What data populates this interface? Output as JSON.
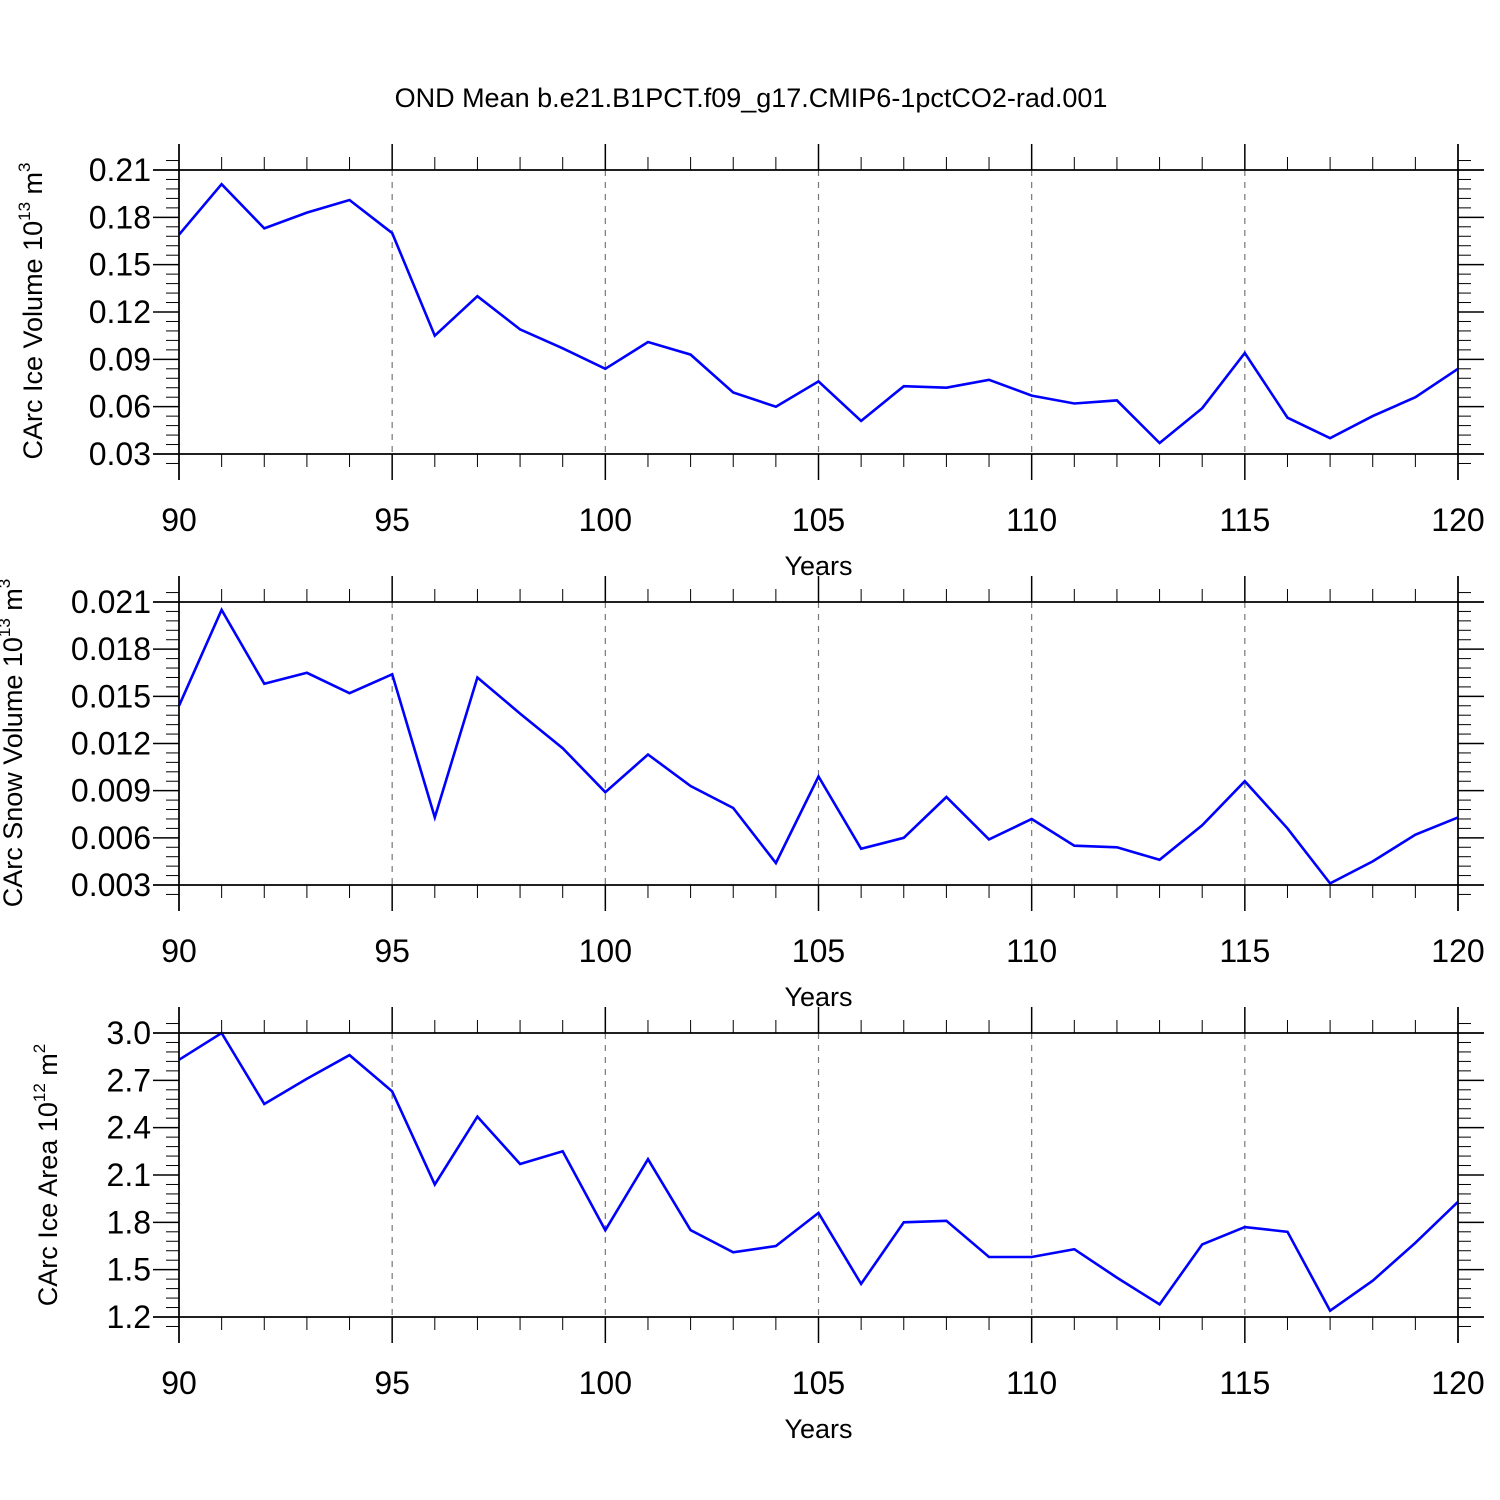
{
  "figure": {
    "title": "OND Mean b.e21.B1PCT.f09_g17.CMIP6-1pctCO2-rad.001"
  },
  "colors": {
    "series": "#0000ff",
    "axis": "#000000",
    "grid": "#777777"
  },
  "chart_data": [
    {
      "type": "line",
      "title": "",
      "xlabel": "Years",
      "ylabel": {
        "main": "CArc Ice Volume 10",
        "exp": "13",
        "unit": " m",
        "unit_exp": "3"
      },
      "xlim": [
        90,
        120
      ],
      "ylim": [
        0.03,
        0.21
      ],
      "xticks": [
        90,
        95,
        100,
        105,
        110,
        115,
        120
      ],
      "xtick_labels": [
        "90",
        "95",
        "100",
        "105",
        "110",
        "115",
        "120"
      ],
      "yticks": [
        0.03,
        0.06,
        0.09,
        0.12,
        0.15,
        0.18,
        0.21
      ],
      "ytick_labels": [
        "0.03",
        "0.06",
        "0.09",
        "0.12",
        "0.15",
        "0.18",
        "0.21"
      ],
      "grid": "vertical dashed at major x ticks",
      "x": [
        90,
        91,
        92,
        93,
        94,
        95,
        96,
        97,
        98,
        99,
        100,
        101,
        102,
        103,
        104,
        105,
        106,
        107,
        108,
        109,
        110,
        111,
        112,
        113,
        114,
        115,
        116,
        117,
        118,
        119,
        120
      ],
      "series": [
        {
          "values": [
            0.169,
            0.201,
            0.173,
            0.183,
            0.191,
            0.17,
            0.105,
            0.13,
            0.109,
            0.097,
            0.084,
            0.101,
            0.093,
            0.069,
            0.06,
            0.076,
            0.051,
            0.073,
            0.072,
            0.077,
            0.067,
            0.062,
            0.064,
            0.037,
            0.059,
            0.094,
            0.053,
            0.04,
            0.054,
            0.066,
            0.084
          ]
        }
      ]
    },
    {
      "type": "line",
      "title": "",
      "xlabel": "Years",
      "ylabel": {
        "main": "CArc Snow Volume 10",
        "exp": "13",
        "unit": " m",
        "unit_exp": "3"
      },
      "xlim": [
        90,
        120
      ],
      "ylim": [
        0.003,
        0.021
      ],
      "xticks": [
        90,
        95,
        100,
        105,
        110,
        115,
        120
      ],
      "xtick_labels": [
        "90",
        "95",
        "100",
        "105",
        "110",
        "115",
        "120"
      ],
      "yticks": [
        0.003,
        0.006,
        0.009,
        0.012,
        0.015,
        0.018,
        0.021
      ],
      "ytick_labels": [
        "0.003",
        "0.006",
        "0.009",
        "0.012",
        "0.015",
        "0.018",
        "0.021"
      ],
      "grid": "vertical dashed at major x ticks",
      "x": [
        90,
        91,
        92,
        93,
        94,
        95,
        96,
        97,
        98,
        99,
        100,
        101,
        102,
        103,
        104,
        105,
        106,
        107,
        108,
        109,
        110,
        111,
        112,
        113,
        114,
        115,
        116,
        117,
        118,
        119,
        120
      ],
      "series": [
        {
          "values": [
            0.0144,
            0.0205,
            0.0158,
            0.0165,
            0.0152,
            0.0164,
            0.0073,
            0.0162,
            0.0139,
            0.0117,
            0.0089,
            0.0113,
            0.0093,
            0.0079,
            0.0044,
            0.0099,
            0.0053,
            0.006,
            0.0086,
            0.0059,
            0.0072,
            0.0055,
            0.0054,
            0.0046,
            0.0068,
            0.0096,
            0.0066,
            0.0031,
            0.0045,
            0.0062,
            0.0073
          ]
        }
      ]
    },
    {
      "type": "line",
      "title": "",
      "xlabel": "Years",
      "ylabel": {
        "main": "CArc Ice Area 10",
        "exp": "12",
        "unit": " m",
        "unit_exp": "2"
      },
      "xlim": [
        90,
        120
      ],
      "ylim": [
        1.2,
        3.0
      ],
      "xticks": [
        90,
        95,
        100,
        105,
        110,
        115,
        120
      ],
      "xtick_labels": [
        "90",
        "95",
        "100",
        "105",
        "110",
        "115",
        "120"
      ],
      "yticks": [
        1.2,
        1.5,
        1.8,
        2.1,
        2.4,
        2.7,
        3.0
      ],
      "ytick_labels": [
        "1.2",
        "1.5",
        "1.8",
        "2.1",
        "2.4",
        "2.7",
        "3.0"
      ],
      "grid": "vertical dashed at major x ticks",
      "x": [
        90,
        91,
        92,
        93,
        94,
        95,
        96,
        97,
        98,
        99,
        100,
        101,
        102,
        103,
        104,
        105,
        106,
        107,
        108,
        109,
        110,
        111,
        112,
        113,
        114,
        115,
        116,
        117,
        118,
        119,
        120
      ],
      "series": [
        {
          "values": [
            2.83,
            3.0,
            2.55,
            2.71,
            2.86,
            2.63,
            2.04,
            2.47,
            2.17,
            2.25,
            1.75,
            2.2,
            1.75,
            1.61,
            1.65,
            1.86,
            1.41,
            1.8,
            1.81,
            1.58,
            1.58,
            1.63,
            1.45,
            1.28,
            1.66,
            1.77,
            1.74,
            1.24,
            1.43,
            1.67,
            1.93
          ]
        }
      ]
    }
  ]
}
